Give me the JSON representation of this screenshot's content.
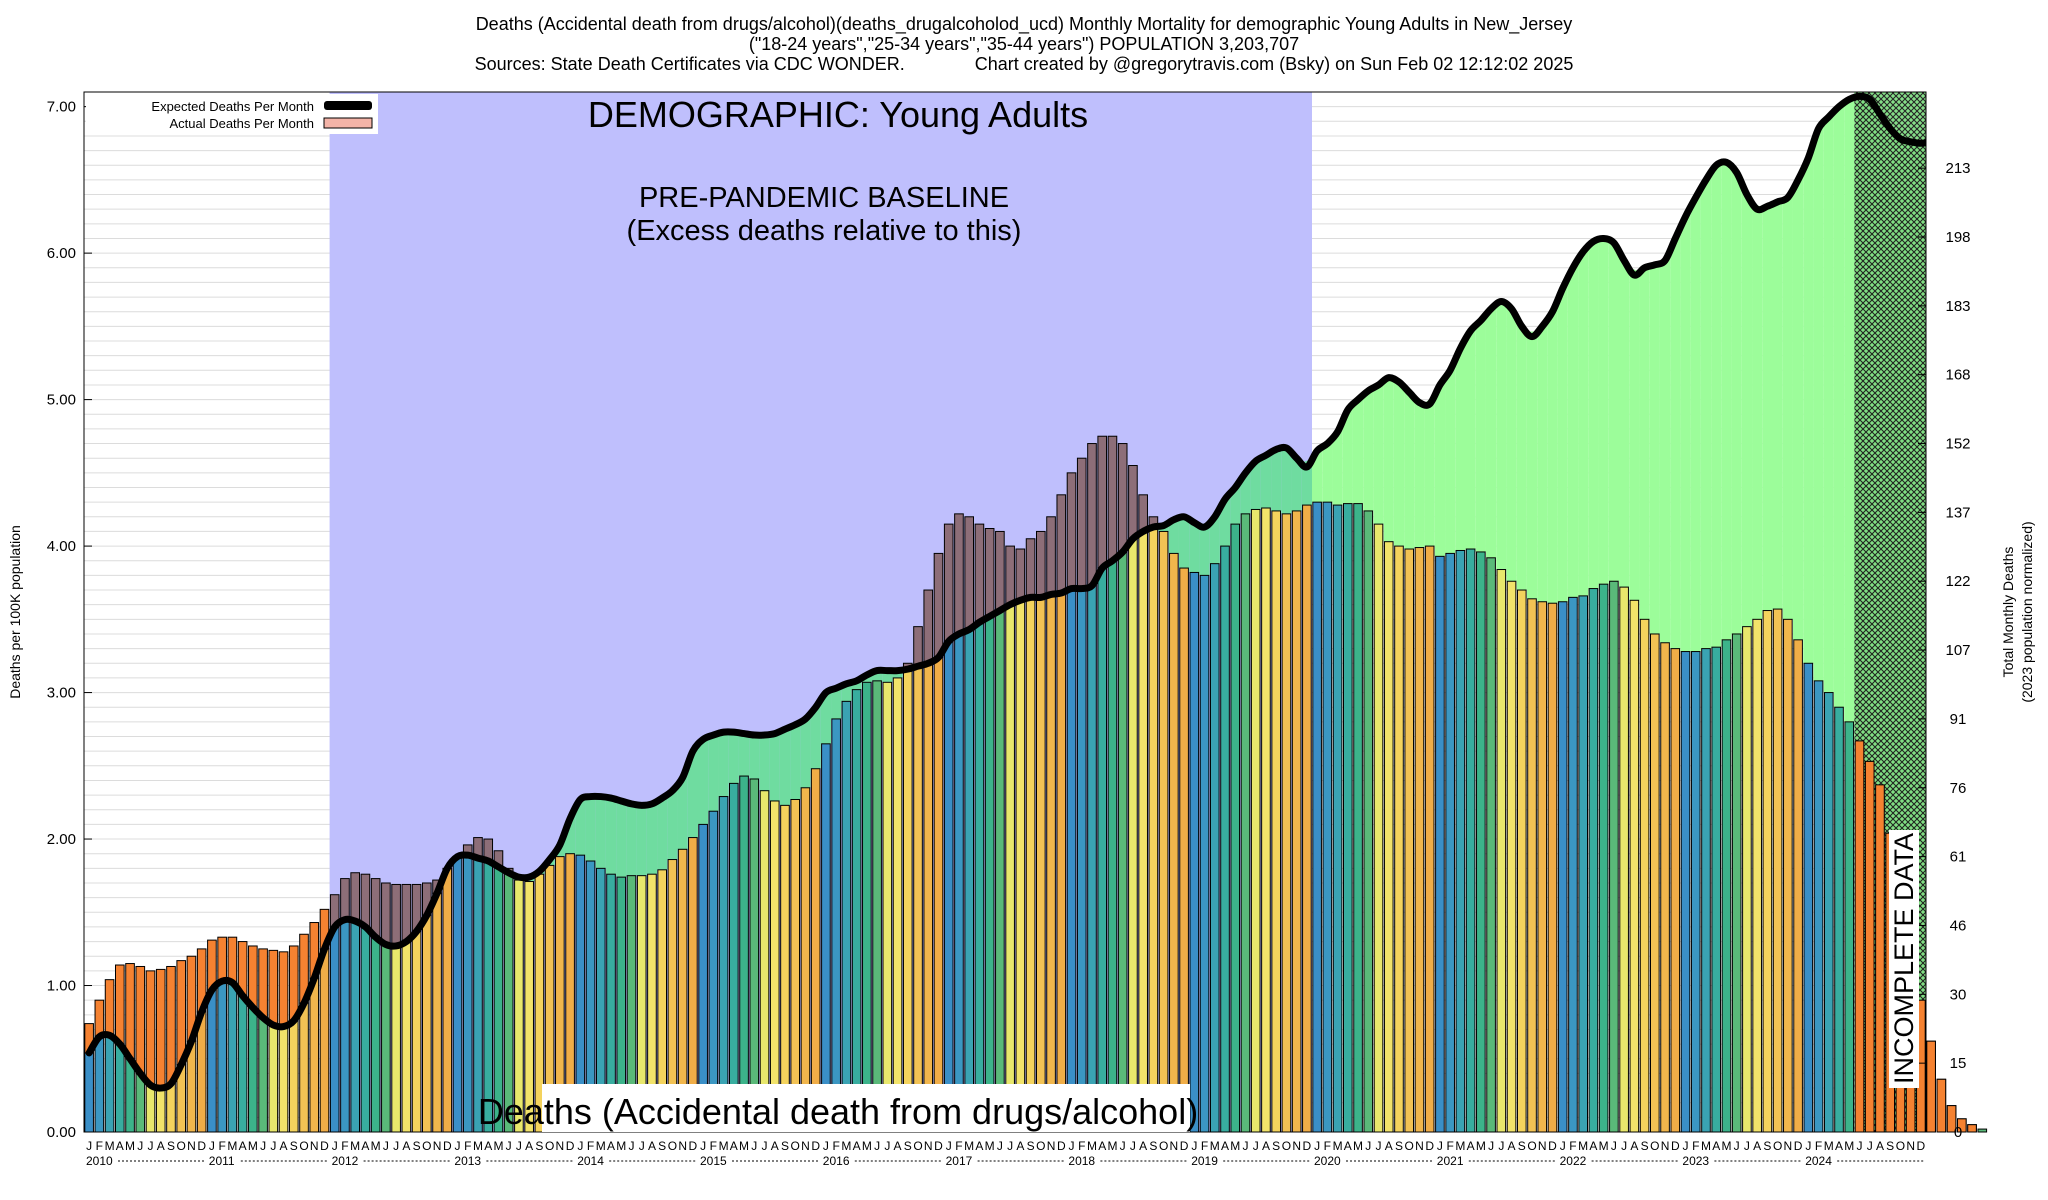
{
  "title": {
    "line1": "Deaths (Accidental death from drugs/alcohol)(deaths_drugalcoholod_ucd) Monthly Mortality for demographic Young Adults in New_Jersey",
    "line2": "(\"18-24 years\",\"25-34 years\",\"35-44 years\") POPULATION 3,203,707",
    "line3": "Sources: State Death Certificates via CDC WONDER.              Chart created by @gregorytravis.com (Bsky) on Sun Feb 02 12:12:02 2025"
  },
  "chart_data": {
    "type": "bar",
    "ylabel": "Deaths per 100K population",
    "y2label_line1": "Total Monthly Deaths",
    "y2label_line2": "(2023 population normalized)",
    "ylim": [
      0,
      7.1
    ],
    "yticks": [
      "0.00",
      "1.00",
      "2.00",
      "3.00",
      "4.00",
      "5.00",
      "6.00",
      "7.00"
    ],
    "y2ticks": [
      {
        "value": 0,
        "label": "0"
      },
      {
        "value": 0.47,
        "label": "15"
      },
      {
        "value": 0.94,
        "label": "30"
      },
      {
        "value": 1.41,
        "label": "46"
      },
      {
        "value": 1.88,
        "label": "61"
      },
      {
        "value": 2.35,
        "label": "76"
      },
      {
        "value": 2.82,
        "label": "91"
      },
      {
        "value": 3.29,
        "label": "107"
      },
      {
        "value": 3.76,
        "label": "122"
      },
      {
        "value": 4.23,
        "label": "137"
      },
      {
        "value": 4.7,
        "label": "152"
      },
      {
        "value": 5.17,
        "label": "168"
      },
      {
        "value": 5.64,
        "label": "183"
      },
      {
        "value": 6.11,
        "label": "198"
      },
      {
        "value": 6.58,
        "label": "213"
      }
    ],
    "month_letters": [
      "J",
      "F",
      "M",
      "A",
      "M",
      "J",
      "J",
      "A",
      "S",
      "O",
      "N",
      "D"
    ],
    "years": [
      "2010",
      "2011",
      "2012",
      "2013",
      "2014",
      "2015",
      "2016",
      "2017",
      "2018",
      "2019",
      "2020",
      "2021",
      "2022",
      "2023",
      "2024"
    ],
    "start": "2010-01",
    "legend": {
      "position": "top-left",
      "expected": "Expected Deaths Per Month",
      "actual": "Actual Deaths Per Month"
    },
    "annotations": {
      "demographic": "DEMOGRAPHIC: Young Adults",
      "baseline_line1": "PRE-PANDEMIC BASELINE",
      "baseline_line2": "(Excess deaths relative to this)",
      "bottom_label": "Deaths (Accidental death from drugs/alcohol)",
      "incomplete": "INCOMPLETE DATA"
    },
    "baseline_period": [
      "2012-01",
      "2019-12"
    ],
    "incomplete_period": [
      "2024-06",
      "2024-12"
    ],
    "colors": {
      "baseline_region": "#bfbffd",
      "excess_fill": "#9cfd9a",
      "overlap_fill": "#6fdca0",
      "actual_excess": "#f58231",
      "overlap_excess": "#8d6e78",
      "legend_actual": "#f4b4a8",
      "expected_line": "#000000"
    },
    "series": [
      {
        "name": "Actual Deaths Per Month",
        "values": [
          0.74,
          0.9,
          1.04,
          1.14,
          1.15,
          1.13,
          1.1,
          1.11,
          1.13,
          1.17,
          1.2,
          1.25,
          1.31,
          1.33,
          1.33,
          1.3,
          1.27,
          1.25,
          1.24,
          1.23,
          1.27,
          1.35,
          1.43,
          1.52,
          1.62,
          1.73,
          1.77,
          1.76,
          1.73,
          1.7,
          1.69,
          1.69,
          1.69,
          1.7,
          1.72,
          1.8,
          1.88,
          1.96,
          2.01,
          2.0,
          1.92,
          1.8,
          1.72,
          1.71,
          1.76,
          1.82,
          1.88,
          1.9,
          1.89,
          1.85,
          1.8,
          1.76,
          1.74,
          1.75,
          1.75,
          1.76,
          1.79,
          1.86,
          1.93,
          2.01,
          2.1,
          2.19,
          2.29,
          2.38,
          2.43,
          2.41,
          2.33,
          2.26,
          2.23,
          2.27,
          2.35,
          2.48,
          2.65,
          2.82,
          2.94,
          3.02,
          3.07,
          3.08,
          3.07,
          3.1,
          3.2,
          3.45,
          3.7,
          3.95,
          4.15,
          4.22,
          4.2,
          4.15,
          4.12,
          4.1,
          4.0,
          3.98,
          4.05,
          4.1,
          4.2,
          4.35,
          4.5,
          4.6,
          4.7,
          4.75,
          4.75,
          4.7,
          4.55,
          4.35,
          4.2,
          4.1,
          3.95,
          3.85,
          3.82,
          3.8,
          3.88,
          4.0,
          4.15,
          4.22,
          4.25,
          4.26,
          4.24,
          4.22,
          4.24,
          4.28,
          4.3,
          4.3,
          4.28,
          4.29,
          4.29,
          4.24,
          4.15,
          4.03,
          4.0,
          3.98,
          3.99,
          4.0,
          3.93,
          3.95,
          3.97,
          3.98,
          3.96,
          3.92,
          3.84,
          3.76,
          3.7,
          3.64,
          3.62,
          3.61,
          3.62,
          3.65,
          3.66,
          3.71,
          3.74,
          3.76,
          3.72,
          3.63,
          3.5,
          3.4,
          3.34,
          3.3,
          3.28,
          3.28,
          3.3,
          3.31,
          3.36,
          3.4,
          3.45,
          3.5,
          3.56,
          3.57,
          3.5,
          3.36,
          3.2,
          3.08,
          3.0,
          2.9,
          2.8,
          2.67,
          2.53,
          2.37,
          2.04,
          1.67,
          1.28,
          0.9,
          0.62,
          0.36,
          0.18,
          0.09,
          0.05,
          0.02
        ]
      },
      {
        "name": "Expected Deaths Per Month",
        "values": [
          0.54,
          0.65,
          0.66,
          0.6,
          0.5,
          0.4,
          0.32,
          0.3,
          0.33,
          0.46,
          0.62,
          0.82,
          0.97,
          1.03,
          1.02,
          0.93,
          0.85,
          0.78,
          0.73,
          0.72,
          0.76,
          0.88,
          1.05,
          1.25,
          1.4,
          1.45,
          1.44,
          1.4,
          1.33,
          1.28,
          1.27,
          1.3,
          1.37,
          1.48,
          1.63,
          1.8,
          1.88,
          1.89,
          1.87,
          1.85,
          1.81,
          1.77,
          1.74,
          1.74,
          1.78,
          1.86,
          1.96,
          2.14,
          2.27,
          2.29,
          2.29,
          2.28,
          2.26,
          2.24,
          2.23,
          2.24,
          2.28,
          2.33,
          2.42,
          2.6,
          2.68,
          2.71,
          2.73,
          2.73,
          2.72,
          2.71,
          2.71,
          2.72,
          2.75,
          2.78,
          2.82,
          2.9,
          3.0,
          3.03,
          3.06,
          3.08,
          3.12,
          3.15,
          3.15,
          3.15,
          3.16,
          3.18,
          3.2,
          3.24,
          3.35,
          3.4,
          3.43,
          3.48,
          3.52,
          3.56,
          3.6,
          3.63,
          3.65,
          3.65,
          3.67,
          3.68,
          3.71,
          3.71,
          3.73,
          3.85,
          3.9,
          3.96,
          4.05,
          4.1,
          4.13,
          4.14,
          4.18,
          4.2,
          4.16,
          4.13,
          4.2,
          4.32,
          4.4,
          4.5,
          4.58,
          4.62,
          4.66,
          4.67,
          4.6,
          4.54,
          4.65,
          4.7,
          4.78,
          4.93,
          5.0,
          5.06,
          5.1,
          5.15,
          5.12,
          5.05,
          4.98,
          4.97,
          5.1,
          5.2,
          5.35,
          5.47,
          5.54,
          5.62,
          5.67,
          5.62,
          5.5,
          5.43,
          5.5,
          5.6,
          5.76,
          5.9,
          6.01,
          6.08,
          6.1,
          6.07,
          5.95,
          5.85,
          5.9,
          5.92,
          5.95,
          6.1,
          6.25,
          6.38,
          6.5,
          6.6,
          6.62,
          6.55,
          6.4,
          6.3,
          6.32,
          6.35,
          6.38,
          6.5,
          6.65,
          6.85,
          6.93,
          7.0,
          7.05,
          7.07,
          7.05,
          6.95,
          6.85,
          6.78,
          6.76,
          6.75,
          6.76,
          6.77,
          6.79,
          6.82,
          6.85,
          6.78
        ]
      }
    ]
  }
}
